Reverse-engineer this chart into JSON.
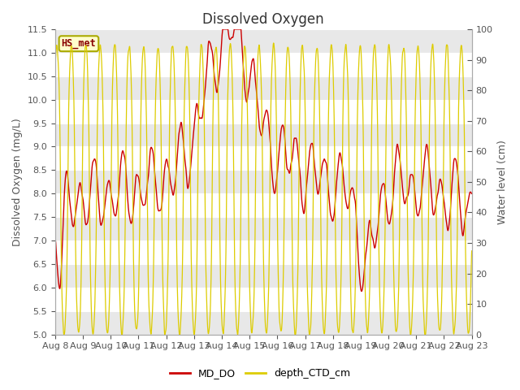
{
  "title": "Dissolved Oxygen",
  "ylabel_left": "Dissolved Oxygen (mg/L)",
  "ylabel_right": "Water level (cm)",
  "ylim_left": [
    5.0,
    11.5
  ],
  "ylim_right": [
    0,
    100
  ],
  "yticks_left": [
    5.0,
    5.5,
    6.0,
    6.5,
    7.0,
    7.5,
    8.0,
    8.5,
    9.0,
    9.5,
    10.0,
    10.5,
    11.0,
    11.5
  ],
  "yticks_right": [
    0,
    10,
    20,
    30,
    40,
    50,
    60,
    70,
    80,
    90,
    100
  ],
  "xtick_labels": [
    "Aug 8",
    "Aug 9",
    "Aug 10",
    "Aug 11",
    "Aug 12",
    "Aug 13",
    "Aug 14",
    "Aug 15",
    "Aug 16",
    "Aug 17",
    "Aug 18",
    "Aug 19",
    "Aug 20",
    "Aug 21",
    "Aug 22",
    "Aug 23"
  ],
  "color_DO": "#cc0000",
  "color_depth": "#ddcc00",
  "legend_label_DO": "MD_DO",
  "legend_label_depth": "depth_CTD_cm",
  "annotation_text": "HS_met",
  "annotation_color": "#880000",
  "annotation_bg": "#ffffcc",
  "annotation_border": "#aaaa00",
  "background_band_color": "#e8e8e8",
  "title_fontsize": 12,
  "axis_label_fontsize": 9,
  "tick_fontsize": 8
}
